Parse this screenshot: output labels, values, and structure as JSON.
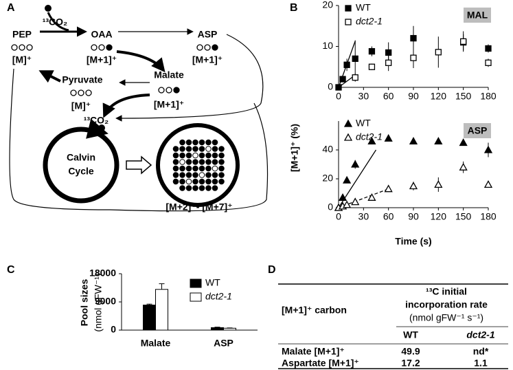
{
  "panel_labels": [
    "A",
    "B",
    "C",
    "D"
  ],
  "diagram": {
    "labels": [
      "¹³CO₂",
      "PEP",
      "[M]⁺",
      "OAA",
      "[M+1]⁺",
      "ASP",
      "[M+1]⁺",
      "Pyruvate",
      "[M]⁺",
      "Malate",
      "[M+1]⁺",
      "¹³CO₂",
      "Calvin",
      "Cycle",
      "[M+2]⁺- [M+7]⁺"
    ]
  },
  "chart_data": [
    {
      "type": "scatter",
      "label": "MAL",
      "ylabel": "[M+1]⁺ (%)",
      "xlim": [
        0,
        180
      ],
      "xticks": [
        0,
        30,
        60,
        90,
        120,
        150,
        180
      ],
      "ylim": [
        0,
        20
      ],
      "yticks": [
        0,
        10,
        20
      ],
      "series": [
        {
          "name": "WT",
          "marker": "square",
          "filled": true,
          "color": "#000000",
          "x": [
            0,
            5,
            10,
            20,
            40,
            60,
            90,
            150,
            180
          ],
          "values": [
            0,
            2,
            5.5,
            7,
            8.8,
            8.5,
            12,
            11,
            9.5
          ],
          "errors": [
            0,
            0.5,
            1.5,
            4.5,
            1.2,
            2.5,
            3,
            2,
            1
          ]
        },
        {
          "name": "dct2-1",
          "marker": "square",
          "filled": false,
          "color": "#000000",
          "x": [
            20,
            40,
            60,
            90,
            120,
            150,
            180
          ],
          "values": [
            2.4,
            5,
            6,
            7.2,
            8.6,
            11.2,
            6
          ],
          "errors": [
            1,
            0.8,
            2,
            2.5,
            3.8,
            2.5,
            1
          ]
        }
      ],
      "fits": [
        {
          "x": [
            0,
            20
          ],
          "values": [
            0,
            11.3
          ],
          "dash": false
        },
        {
          "x": [
            0,
            20
          ],
          "values": [
            0,
            3
          ],
          "dash": false
        }
      ]
    },
    {
      "type": "scatter",
      "label": "ASP",
      "xlabel": "Time (s)",
      "xlim": [
        0,
        180
      ],
      "xticks": [
        0,
        30,
        60,
        90,
        120,
        150,
        180
      ],
      "ylim": [
        0,
        60
      ],
      "yticks": [
        0,
        20,
        40
      ],
      "series": [
        {
          "name": "WT",
          "marker": "triangle",
          "filled": true,
          "color": "#000000",
          "x": [
            0,
            5,
            10,
            20,
            40,
            60,
            90,
            120,
            150,
            180
          ],
          "values": [
            0,
            7,
            19,
            30,
            46,
            48,
            46,
            46,
            45,
            40
          ],
          "errors": [
            0,
            1,
            2,
            3,
            2,
            1,
            1,
            2,
            2,
            5
          ]
        },
        {
          "name": "dct2-1",
          "marker": "triangle",
          "filled": false,
          "color": "#000000",
          "x": [
            0,
            5,
            10,
            20,
            40,
            60,
            90,
            120,
            150,
            180
          ],
          "values": [
            0,
            1,
            2,
            4,
            7,
            13,
            15,
            16,
            28,
            16
          ],
          "errors": [
            0,
            1,
            1,
            1,
            1,
            2,
            3,
            5,
            4,
            2
          ]
        }
      ],
      "fits": [
        {
          "x": [
            0,
            45
          ],
          "values": [
            0,
            40
          ],
          "dash": false
        },
        {
          "x": [
            0,
            60
          ],
          "values": [
            0,
            13
          ],
          "dash": true
        }
      ]
    },
    {
      "type": "bar",
      "ylabel": "Pool sizes",
      "ylabel_unit": "(nmol gFW⁻¹)",
      "categories": [
        "Malate",
        "ASP"
      ],
      "ylim": [
        0,
        18000
      ],
      "yticks": [
        0,
        9000,
        18000
      ],
      "series": [
        {
          "name": "WT",
          "color": "#000000",
          "values": [
            8000,
            800
          ],
          "errors": [
            300,
            150
          ]
        },
        {
          "name": "dct2-1",
          "color": "#ffffff",
          "values": [
            13000,
            600
          ],
          "errors": [
            1800,
            100
          ]
        }
      ]
    }
  ],
  "table": {
    "header": {
      "row_label": "[M+1]⁺ carbon",
      "title": "¹³C initial",
      "title2": "incorporation rate",
      "unit": "(nmol gFW⁻¹ s⁻¹)",
      "columns": [
        "WT",
        "dct2-1"
      ]
    },
    "rows": [
      [
        "Malate [M+1]⁺",
        "49.9",
        "nd*"
      ],
      [
        "Aspartate [M+1]⁺",
        "17.2",
        "1.1"
      ]
    ]
  }
}
